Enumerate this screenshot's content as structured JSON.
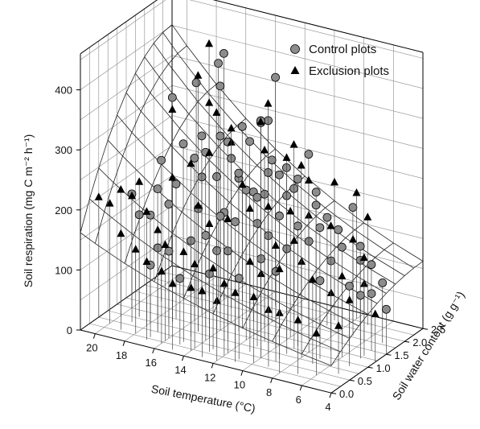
{
  "chart_data": {
    "type": "scatter",
    "subtype": "3d-scatter-with-fitted-surface",
    "title": "",
    "xlabel": "Soil temperature (°C)",
    "ylabel": "Soil water content (g g⁻¹)",
    "zlabel": "Soil respiration (mg C m⁻² h⁻¹)",
    "xlim": [
      4,
      21
    ],
    "ylim": [
      0,
      2.5
    ],
    "zlim": [
      0,
      460
    ],
    "x_ticks": [
      20,
      18,
      16,
      14,
      12,
      10,
      8,
      6,
      4
    ],
    "y_ticks": [
      "0.0",
      "0.5",
      "1.0",
      "1.5",
      "2.0",
      "2.5"
    ],
    "y_tick_values": [
      0,
      0.5,
      1.0,
      1.5,
      2.0,
      2.5
    ],
    "z_ticks": [
      0,
      100,
      200,
      300,
      400
    ],
    "legend_position": "top-right",
    "colors": {
      "control": "#8c8c8c",
      "exclusion": "#000000",
      "surface": "#222222"
    },
    "surface": {
      "description": "fitted",
      "grid_x": [
        4,
        6,
        8,
        10,
        12,
        14,
        16,
        18,
        20,
        21
      ],
      "grid_y": [
        0,
        0.25,
        0.5,
        0.75,
        1.0,
        1.25,
        1.5,
        1.75,
        2.0,
        2.25,
        2.5
      ],
      "model": "R = 150 * exp(0.075*(T-12)) * (0.55 + 0.65*W - 0.13*W*W)"
    },
    "series": [
      {
        "name": "Control plots",
        "marker": "circle",
        "points": [
          [
            16,
            1.9,
            410
          ],
          [
            16,
            1.75,
            400
          ],
          [
            17,
            1.55,
            370
          ],
          [
            18,
            1.3,
            350
          ],
          [
            16,
            1.8,
            360
          ],
          [
            13,
            2.1,
            380
          ],
          [
            12,
            1.3,
            345
          ],
          [
            12,
            1.5,
            340
          ],
          [
            13,
            1.7,
            325
          ],
          [
            14,
            1.2,
            305
          ],
          [
            15,
            1.4,
            300
          ],
          [
            15,
            1.0,
            290
          ],
          [
            16,
            1.1,
            270
          ],
          [
            14,
            0.9,
            260
          ],
          [
            13,
            1.1,
            255
          ],
          [
            12,
            0.9,
            250
          ],
          [
            11,
            1.0,
            245
          ],
          [
            10,
            1.2,
            240
          ],
          [
            11,
            1.4,
            260
          ],
          [
            12,
            1.6,
            270
          ],
          [
            10,
            1.5,
            255
          ],
          [
            9,
            1.6,
            235
          ],
          [
            14,
            1.5,
            240
          ],
          [
            15,
            1.7,
            250
          ],
          [
            16,
            1.3,
            230
          ],
          [
            17,
            1.0,
            225
          ],
          [
            18,
            0.9,
            215
          ],
          [
            17,
            0.8,
            200
          ],
          [
            15,
            0.8,
            205
          ],
          [
            13,
            0.7,
            215
          ],
          [
            12,
            0.6,
            210
          ],
          [
            11,
            0.8,
            205
          ],
          [
            10,
            0.7,
            195
          ],
          [
            9,
            1.1,
            200
          ],
          [
            8,
            1.3,
            195
          ],
          [
            8,
            1.0,
            185
          ],
          [
            9,
            0.8,
            175
          ],
          [
            10,
            0.5,
            165
          ],
          [
            12,
            0.4,
            170
          ],
          [
            13,
            0.5,
            160
          ],
          [
            14,
            0.6,
            175
          ],
          [
            15,
            0.6,
            160
          ],
          [
            16,
            0.4,
            145
          ],
          [
            17,
            0.5,
            140
          ],
          [
            18,
            0.7,
            180
          ],
          [
            19,
            0.8,
            170
          ],
          [
            17,
            0.3,
            120
          ],
          [
            15,
            0.3,
            110
          ],
          [
            13,
            0.3,
            130
          ],
          [
            11,
            0.3,
            135
          ],
          [
            7,
            1.5,
            160
          ],
          [
            7,
            1.2,
            150
          ],
          [
            6,
            1.6,
            140
          ],
          [
            6,
            1.9,
            120
          ],
          [
            7,
            2.0,
            140
          ],
          [
            5,
            1.8,
            100
          ],
          [
            5,
            1.5,
            95
          ],
          [
            8,
            1.8,
            170
          ],
          [
            9,
            1.9,
            180
          ],
          [
            10,
            2.0,
            190
          ],
          [
            11,
            1.8,
            220
          ],
          [
            12,
            2.0,
            240
          ],
          [
            13,
            1.9,
            230
          ],
          [
            14,
            1.0,
            190
          ],
          [
            4,
            1.5,
            75
          ],
          [
            6,
            1.3,
            110
          ],
          [
            5,
            1.2,
            105
          ],
          [
            8,
            2.2,
            190
          ],
          [
            11,
            2.2,
            260
          ],
          [
            15,
            2.0,
            290
          ],
          [
            17,
            1.7,
            275
          ],
          [
            18,
            1.6,
            260
          ],
          [
            19,
            1.4,
            235
          ],
          [
            20,
            1.0,
            190
          ],
          [
            14,
            1.8,
            280
          ],
          [
            13,
            1.5,
            215
          ],
          [
            12,
            1.2,
            225
          ],
          [
            10,
            1.0,
            215
          ],
          [
            9,
            0.5,
            150
          ],
          [
            7,
            0.9,
            130
          ]
        ]
      },
      {
        "name": "Exclusion plots",
        "marker": "triangle",
        "points": [
          [
            17,
            1.9,
            420
          ],
          [
            17,
            1.6,
            380
          ],
          [
            16,
            1.5,
            345
          ],
          [
            18,
            1.3,
            330
          ],
          [
            13,
            1.9,
            345
          ],
          [
            14,
            1.3,
            300
          ],
          [
            15,
            1.1,
            285
          ],
          [
            12,
            1.4,
            295
          ],
          [
            11,
            1.6,
            280
          ],
          [
            16,
            1.0,
            265
          ],
          [
            17,
            0.9,
            240
          ],
          [
            19,
            0.8,
            225
          ],
          [
            20,
            0.7,
            210
          ],
          [
            18,
            0.6,
            190
          ],
          [
            17,
            0.5,
            170
          ],
          [
            16,
            0.3,
            160
          ],
          [
            15,
            0.4,
            150
          ],
          [
            14,
            0.3,
            140
          ],
          [
            13,
            0.4,
            135
          ],
          [
            12,
            0.3,
            120
          ],
          [
            11,
            0.2,
            115
          ],
          [
            10,
            0.3,
            110
          ],
          [
            9,
            0.3,
            95
          ],
          [
            8,
            0.2,
            100
          ],
          [
            7,
            0.3,
            90
          ],
          [
            19,
            0.3,
            160
          ],
          [
            20,
            0.4,
            200
          ],
          [
            21,
            0.5,
            200
          ],
          [
            19,
            0.6,
            210
          ],
          [
            18,
            0.3,
            140
          ],
          [
            17,
            0.2,
            130
          ],
          [
            16,
            0.2,
            120
          ],
          [
            15,
            0.1,
            110
          ],
          [
            14,
            0.2,
            105
          ],
          [
            13,
            0.1,
            110
          ],
          [
            12,
            0.1,
            100
          ],
          [
            10,
            0.5,
            140
          ],
          [
            9,
            0.6,
            150
          ],
          [
            8,
            0.8,
            160
          ],
          [
            7,
            0.7,
            140
          ],
          [
            6,
            0.8,
            120
          ],
          [
            6,
            1.1,
            135
          ],
          [
            5,
            0.9,
            110
          ],
          [
            5,
            1.3,
            120
          ],
          [
            6,
            1.7,
            140
          ],
          [
            7,
            1.8,
            160
          ],
          [
            8,
            1.6,
            185
          ],
          [
            9,
            1.4,
            205
          ],
          [
            10,
            1.3,
            210
          ],
          [
            11,
            1.1,
            220
          ],
          [
            12,
            1.0,
            215
          ],
          [
            13,
            0.8,
            200
          ],
          [
            14,
            0.7,
            190
          ],
          [
            15,
            0.8,
            210
          ],
          [
            11,
            2.0,
            250
          ],
          [
            10,
            1.8,
            240
          ],
          [
            9,
            2.1,
            230
          ],
          [
            8,
            2.3,
            210
          ],
          [
            7,
            2.2,
            180
          ],
          [
            12,
            2.2,
            270
          ],
          [
            14,
            2.1,
            300
          ],
          [
            15,
            1.7,
            300
          ],
          [
            13,
            1.2,
            240
          ],
          [
            16,
            1.7,
            320
          ],
          [
            10,
            0.9,
            170
          ],
          [
            4,
            1.2,
            80
          ],
          [
            5,
            0.6,
            80
          ],
          [
            6,
            0.4,
            70
          ],
          [
            9,
            1.0,
            180
          ],
          [
            11,
            0.6,
            150
          ]
        ]
      }
    ]
  }
}
